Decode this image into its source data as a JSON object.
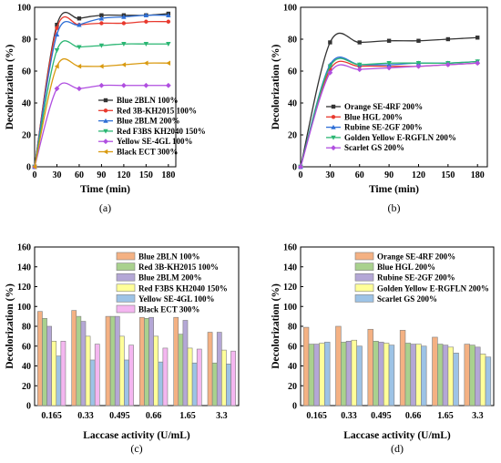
{
  "chart_data": [
    {
      "id": "a",
      "panel_label": "(a)",
      "type": "line",
      "xlabel": "Time (min)",
      "ylabel": "Decolorization (%)",
      "xlim": [
        0,
        190
      ],
      "ylim": [
        0,
        100
      ],
      "xticks": [
        0,
        30,
        60,
        90,
        120,
        150,
        180
      ],
      "yticks": [
        0,
        20,
        40,
        60,
        80,
        100
      ],
      "x": [
        0,
        30,
        60,
        90,
        120,
        150,
        180
      ],
      "legend_position": "bottom-right",
      "series": [
        {
          "name": "Blue 2BLN 100%",
          "color": "#333333",
          "marker": "square",
          "values": [
            0,
            89,
            93,
            95,
            95,
            95,
            96
          ]
        },
        {
          "name": "Red 3B-KH2015 100%",
          "color": "#e8392e",
          "marker": "circle",
          "values": [
            0,
            87,
            89,
            90,
            90,
            91,
            91
          ]
        },
        {
          "name": "Blue 2BLM 200%",
          "color": "#2f6fd6",
          "marker": "triangle-up",
          "values": [
            0,
            83,
            89,
            93,
            94,
            95,
            95
          ]
        },
        {
          "name": "Red F3BS KH2040 150%",
          "color": "#2bb673",
          "marker": "triangle-down",
          "values": [
            0,
            73,
            75,
            76,
            77,
            77,
            77
          ]
        },
        {
          "name": "Yellow SE-4GL 100%",
          "color": "#b04fe0",
          "marker": "diamond",
          "values": [
            0,
            49,
            49,
            51,
            51,
            51,
            51
          ]
        },
        {
          "name": "Black ECT 300%",
          "color": "#d99a10",
          "marker": "triangle-left",
          "values": [
            0,
            63,
            63,
            63,
            64,
            65,
            65
          ]
        }
      ]
    },
    {
      "id": "b",
      "panel_label": "(b)",
      "type": "line",
      "xlabel": "Time (min)",
      "ylabel": "Decolorization (%)",
      "xlim": [
        0,
        190
      ],
      "ylim": [
        0,
        100
      ],
      "xticks": [
        0,
        30,
        60,
        90,
        120,
        150,
        180
      ],
      "yticks": [
        0,
        20,
        40,
        60,
        80,
        100
      ],
      "x": [
        0,
        30,
        60,
        90,
        120,
        150,
        180
      ],
      "legend_position": "bottom-right",
      "series": [
        {
          "name": "Orange SE-4RF 200%",
          "color": "#333333",
          "marker": "square",
          "values": [
            0,
            78,
            78,
            79,
            79,
            80,
            81
          ]
        },
        {
          "name": "Blue HGL 200%",
          "color": "#e8392e",
          "marker": "circle",
          "values": [
            0,
            61,
            63,
            63,
            63,
            64,
            65
          ]
        },
        {
          "name": "Rubine SE-2GF 200%",
          "color": "#2f6fd6",
          "marker": "triangle-up",
          "values": [
            0,
            64,
            64,
            64,
            65,
            65,
            66
          ]
        },
        {
          "name": "Golden Yellow E-RGFLN 200%",
          "color": "#2bb673",
          "marker": "triangle-down",
          "values": [
            0,
            63,
            64,
            65,
            65,
            65,
            66
          ]
        },
        {
          "name": "Scarlet GS 200%",
          "color": "#b04fe0",
          "marker": "diamond",
          "values": [
            0,
            59,
            61,
            62,
            63,
            64,
            65
          ]
        }
      ]
    },
    {
      "id": "c",
      "panel_label": "(c)",
      "type": "bar",
      "xlabel": "Laccase activity (U/mL)",
      "ylabel": "Decolorization (%)",
      "ylim": [
        0,
        160
      ],
      "yticks": [
        0,
        20,
        40,
        60,
        80,
        100,
        120,
        140,
        160
      ],
      "categories": [
        "0.165",
        "0.33",
        "0.495",
        "0.66",
        "1.65",
        "3.3"
      ],
      "legend_position": "top-right",
      "series": [
        {
          "name": "Blue 2BLN 100%",
          "color": "#f4b183",
          "values": [
            95,
            96,
            90,
            89,
            89,
            74
          ]
        },
        {
          "name": "Red 3B-KH2015 100%",
          "color": "#a9d18e",
          "values": [
            88,
            90,
            90,
            88,
            72,
            43
          ]
        },
        {
          "name": "Blue 2BLM 200%",
          "color": "#b4a7d6",
          "values": [
            80,
            85,
            90,
            89,
            86,
            74
          ]
        },
        {
          "name": "Red F3BS KH2040 150%",
          "color": "#ffff99",
          "values": [
            65,
            70,
            70,
            70,
            58,
            56
          ]
        },
        {
          "name": "Yellow SE-4GL 100%",
          "color": "#9dc3e6",
          "values": [
            50,
            46,
            46,
            44,
            43,
            42
          ]
        },
        {
          "name": "Black ECT 300%",
          "color": "#f4b6f0",
          "values": [
            65,
            62,
            61,
            58,
            57,
            55
          ]
        }
      ]
    },
    {
      "id": "d",
      "panel_label": "(d)",
      "type": "bar",
      "xlabel": "Laccase activity (U/mL)",
      "ylabel": "Decolorization (%)",
      "ylim": [
        0,
        160
      ],
      "yticks": [
        0,
        20,
        40,
        60,
        80,
        100,
        120,
        140,
        160
      ],
      "categories": [
        "0.165",
        "0.33",
        "0.495",
        "0.66",
        "1.65",
        "3.3"
      ],
      "legend_position": "top-right",
      "series": [
        {
          "name": "Orange SE-4RF 200%",
          "color": "#f4b183",
          "values": [
            79,
            80,
            77,
            76,
            69,
            62
          ]
        },
        {
          "name": "Blue HGL 200%",
          "color": "#a9d18e",
          "values": [
            62,
            64,
            65,
            63,
            62,
            61
          ]
        },
        {
          "name": "Rubine SE-2GF 200%",
          "color": "#b4a7d6",
          "values": [
            62,
            65,
            64,
            62,
            61,
            59
          ]
        },
        {
          "name": "Golden Yellow E-RGFLN 200%",
          "color": "#ffff99",
          "values": [
            63,
            66,
            63,
            62,
            59,
            52
          ]
        },
        {
          "name": "Scarlet GS 200%",
          "color": "#9dc3e6",
          "values": [
            64,
            60,
            61,
            60,
            53,
            49
          ]
        }
      ]
    }
  ]
}
